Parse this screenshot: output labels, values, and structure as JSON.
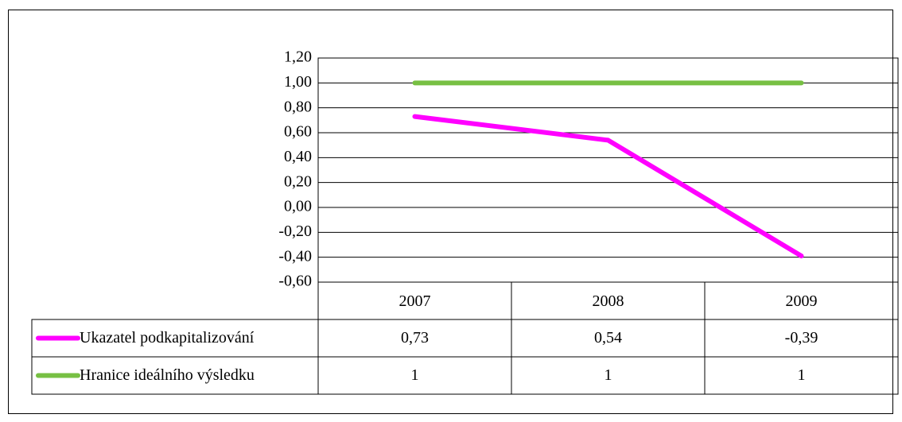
{
  "chart_data": {
    "type": "line",
    "categories": [
      "2007",
      "2008",
      "2009"
    ],
    "series": [
      {
        "name": "Ukazatel podkapitalizování",
        "color": "#ff00ff",
        "values": [
          0.73,
          0.54,
          -0.39
        ],
        "value_labels": [
          "0,73",
          "0,54",
          "-0,39"
        ]
      },
      {
        "name": "Hranice ideálního výsledku",
        "color": "#77c043",
        "values": [
          1,
          1,
          1
        ]
      }
    ],
    "ylim": [
      -0.6,
      1.2
    ],
    "yticks": [
      {
        "value": 1.2,
        "label": "1,20"
      },
      {
        "value": 1.0,
        "label": "1,00"
      },
      {
        "value": 0.8,
        "label": "0,80"
      },
      {
        "value": 0.6,
        "label": "0,60"
      },
      {
        "value": 0.4,
        "label": "0,40"
      },
      {
        "value": 0.2,
        "label": "0,20"
      },
      {
        "value": 0.0,
        "label": "0,00"
      },
      {
        "value": -0.2,
        "label": "-0,20"
      },
      {
        "value": -0.4,
        "label": "-0,40"
      },
      {
        "value": -0.6,
        "label": "-0,60"
      }
    ],
    "grid": true
  }
}
